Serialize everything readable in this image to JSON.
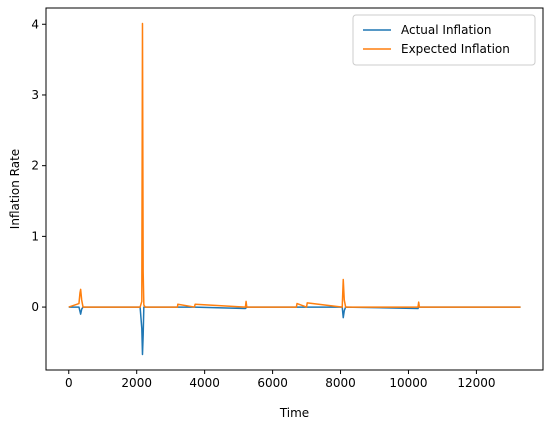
{
  "chart_data": {
    "type": "line",
    "title": "",
    "xlabel": "Time",
    "ylabel": "Inflation Rate",
    "xlim": [
      -670,
      13960
    ],
    "ylim": [
      -0.89,
      4.23
    ],
    "xticks": [
      0,
      2000,
      4000,
      6000,
      8000,
      10000,
      12000
    ],
    "yticks": [
      0,
      1,
      2,
      3,
      4
    ],
    "grid": false,
    "legend_position": "top-right",
    "series": [
      {
        "name": "Actual Inflation",
        "color": "#1f77b4",
        "x": [
          0,
          300,
          330,
          350,
          380,
          420,
          2100,
          2150,
          2170,
          2190,
          2210,
          2250,
          3200,
          3700,
          5200,
          5240,
          6700,
          7000,
          8050,
          8080,
          8110,
          8150,
          10280,
          10300,
          13300
        ],
        "y": [
          0.0,
          0.0,
          -0.06,
          -0.1,
          -0.03,
          0.0,
          0.0,
          -0.3,
          -0.67,
          -0.4,
          0.0,
          0.0,
          0.0,
          0.0,
          -0.02,
          0.0,
          0.0,
          0.0,
          0.0,
          -0.15,
          -0.05,
          0.0,
          -0.02,
          0.0,
          0.0
        ]
      },
      {
        "name": "Expected Inflation",
        "color": "#ff7f0e",
        "x": [
          0,
          300,
          330,
          350,
          380,
          420,
          2100,
          2150,
          2170,
          2190,
          2210,
          2250,
          3200,
          3210,
          3700,
          3720,
          5200,
          5220,
          5240,
          6700,
          6720,
          7000,
          7020,
          8050,
          8080,
          8110,
          8150,
          10280,
          10300,
          10320,
          13300
        ],
        "y": [
          0.0,
          0.05,
          0.2,
          0.25,
          0.1,
          0.0,
          0.0,
          0.08,
          4.01,
          0.5,
          0.03,
          0.0,
          0.0,
          0.04,
          0.0,
          0.04,
          0.0,
          0.08,
          0.0,
          0.0,
          0.05,
          0.0,
          0.06,
          0.0,
          0.39,
          0.1,
          0.0,
          0.0,
          0.07,
          0.0,
          0.0
        ]
      }
    ]
  }
}
